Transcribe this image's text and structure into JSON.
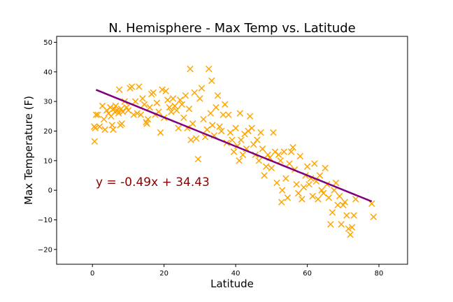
{
  "chart_data": {
    "type": "scatter",
    "title": "N. Hemisphere - Max Temp vs. Latitude",
    "xlabel": "Latitude",
    "ylabel": "Max Temperature (F)",
    "xlim": [
      -10,
      88
    ],
    "ylim": [
      -25,
      52
    ],
    "xticks": [
      0,
      20,
      40,
      60,
      80
    ],
    "yticks": [
      -20,
      -10,
      0,
      10,
      20,
      30,
      40,
      50
    ],
    "grid": false,
    "marker": "x",
    "marker_color": "#FFA500",
    "regression": {
      "slope": -0.49,
      "intercept": 34.43,
      "x_range": [
        1,
        78
      ],
      "color": "#800080",
      "equation": "y = -0.49x + 34.43",
      "equation_color": "#8B0000"
    },
    "points": [
      [
        0.5,
        21.5
      ],
      [
        0.6,
        16.5
      ],
      [
        0.8,
        21
      ],
      [
        1,
        25.5
      ],
      [
        1.5,
        25.5
      ],
      [
        2,
        21.5
      ],
      [
        2.8,
        28.5
      ],
      [
        3.2,
        24
      ],
      [
        3.5,
        20.5
      ],
      [
        4,
        27
      ],
      [
        4.5,
        26
      ],
      [
        5,
        28
      ],
      [
        5.2,
        25
      ],
      [
        5.5,
        22
      ],
      [
        5.8,
        20.5
      ],
      [
        6,
        27.5
      ],
      [
        6.3,
        26.5
      ],
      [
        6.5,
        28.5
      ],
      [
        7,
        27
      ],
      [
        7.3,
        26
      ],
      [
        7.5,
        34
      ],
      [
        7.8,
        22
      ],
      [
        8,
        27.5
      ],
      [
        8.2,
        22.5
      ],
      [
        8.5,
        26.5
      ],
      [
        9,
        30
      ],
      [
        9.5,
        28
      ],
      [
        10,
        27
      ],
      [
        10.5,
        34.5
      ],
      [
        11,
        35
      ],
      [
        11.5,
        25.5
      ],
      [
        12,
        30
      ],
      [
        12.5,
        26
      ],
      [
        13,
        35
      ],
      [
        13.5,
        25.5
      ],
      [
        14,
        31
      ],
      [
        14.5,
        29
      ],
      [
        15,
        23
      ],
      [
        15.2,
        22.5
      ],
      [
        15.5,
        24
      ],
      [
        16,
        28
      ],
      [
        16.5,
        32.5
      ],
      [
        17,
        33
      ],
      [
        17.5,
        25.5
      ],
      [
        18,
        29.5
      ],
      [
        18.5,
        26.5
      ],
      [
        19,
        19.5
      ],
      [
        19.5,
        34
      ],
      [
        20,
        24.5
      ],
      [
        20.5,
        33.5
      ],
      [
        21,
        30.5
      ],
      [
        21.5,
        28
      ],
      [
        22,
        26.5
      ],
      [
        22.5,
        31
      ],
      [
        23,
        28.5
      ],
      [
        23.5,
        27
      ],
      [
        24,
        21
      ],
      [
        24.5,
        30.5
      ],
      [
        25,
        29
      ],
      [
        25.5,
        24.5
      ],
      [
        26,
        32
      ],
      [
        26.5,
        21
      ],
      [
        27,
        27.5
      ],
      [
        27.3,
        41
      ],
      [
        27.5,
        17
      ],
      [
        28,
        22.5
      ],
      [
        28.5,
        33
      ],
      [
        29,
        17.5
      ],
      [
        29.5,
        10.5
      ],
      [
        30,
        31
      ],
      [
        30.5,
        34.5
      ],
      [
        31,
        24
      ],
      [
        31.5,
        18
      ],
      [
        32,
        20.5
      ],
      [
        32.5,
        41
      ],
      [
        33,
        26
      ],
      [
        33.3,
        37
      ],
      [
        33.5,
        22
      ],
      [
        34,
        18.5
      ],
      [
        34.5,
        28
      ],
      [
        35,
        32
      ],
      [
        35.5,
        21.5
      ],
      [
        36,
        20
      ],
      [
        36.5,
        25.5
      ],
      [
        37,
        29
      ],
      [
        37.5,
        16
      ],
      [
        38,
        25.5
      ],
      [
        38.5,
        19.5
      ],
      [
        39,
        17
      ],
      [
        39.5,
        13
      ],
      [
        40,
        21
      ],
      [
        40.5,
        15
      ],
      [
        41,
        10
      ],
      [
        41.2,
        26
      ],
      [
        41.5,
        17
      ],
      [
        42,
        12
      ],
      [
        42.5,
        19
      ],
      [
        43,
        14
      ],
      [
        43.5,
        20
      ],
      [
        44,
        25
      ],
      [
        44.5,
        21
      ],
      [
        45,
        15.5
      ],
      [
        45.5,
        12
      ],
      [
        46,
        17
      ],
      [
        46.5,
        10
      ],
      [
        47,
        19.5
      ],
      [
        47.5,
        14
      ],
      [
        48,
        5
      ],
      [
        48.5,
        8
      ],
      [
        49,
        12
      ],
      [
        49.5,
        11
      ],
      [
        50,
        7.5
      ],
      [
        50.5,
        19.5
      ],
      [
        51,
        13
      ],
      [
        51.5,
        2.5
      ],
      [
        52,
        12
      ],
      [
        52.5,
        10
      ],
      [
        52.8,
        -4
      ],
      [
        53,
        0
      ],
      [
        53.5,
        13
      ],
      [
        54,
        4
      ],
      [
        54.5,
        -2.5
      ],
      [
        55,
        9
      ],
      [
        55.5,
        13
      ],
      [
        56,
        14.5
      ],
      [
        56.5,
        7
      ],
      [
        57,
        2
      ],
      [
        57.5,
        -1
      ],
      [
        58,
        11.5
      ],
      [
        58.5,
        -3
      ],
      [
        59,
        1
      ],
      [
        59.5,
        5
      ],
      [
        60,
        8
      ],
      [
        60.5,
        2
      ],
      [
        61,
        4
      ],
      [
        61.5,
        -2
      ],
      [
        62,
        9
      ],
      [
        62.5,
        3
      ],
      [
        63,
        -3
      ],
      [
        63.5,
        5
      ],
      [
        64,
        0
      ],
      [
        64.5,
        -1
      ],
      [
        65,
        7.5
      ],
      [
        65.5,
        2
      ],
      [
        66,
        -2.5
      ],
      [
        66.5,
        -11.5
      ],
      [
        67,
        -7.5
      ],
      [
        67.5,
        0
      ],
      [
        68,
        2.5
      ],
      [
        68.5,
        -5
      ],
      [
        69,
        -2
      ],
      [
        69.5,
        -11.5
      ],
      [
        70,
        -5
      ],
      [
        70.5,
        -4
      ],
      [
        71,
        -8.5
      ],
      [
        71.5,
        -13
      ],
      [
        72,
        -15
      ],
      [
        72.5,
        -12.5
      ],
      [
        73,
        -8.5
      ],
      [
        73.5,
        -3
      ],
      [
        78,
        -4.5
      ],
      [
        78.5,
        -9
      ]
    ]
  }
}
